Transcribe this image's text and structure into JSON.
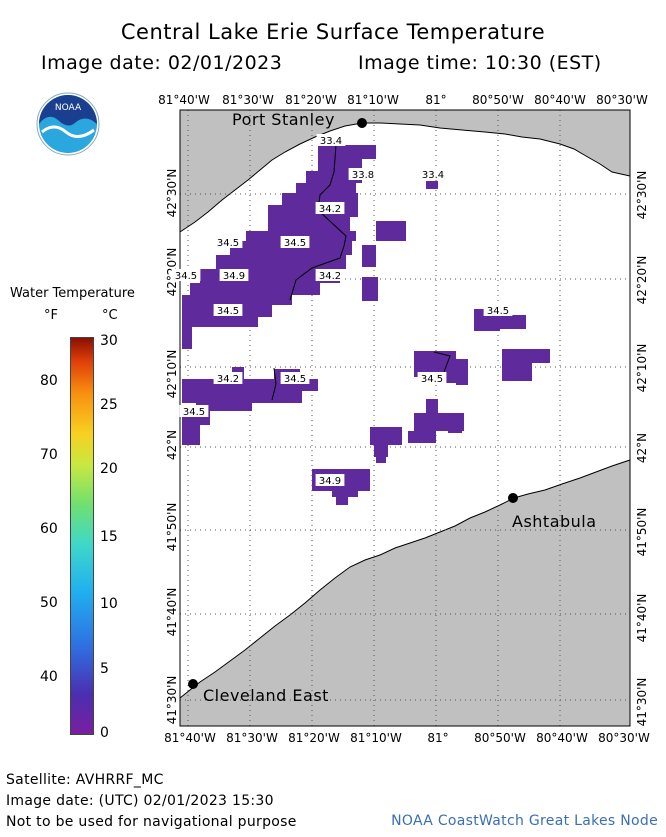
{
  "title": "Central Lake Erie Surface Temperature",
  "image_date": "Image date: 02/01/2023",
  "image_time": "Image time: 10:30 (EST)",
  "logo_text": "NOAA",
  "legend": {
    "title": "Water Temperature",
    "unit_f": "°F",
    "unit_c": "°C",
    "f_labels": [
      "80",
      "70",
      "60",
      "50",
      "40"
    ],
    "c_labels": [
      "30",
      "25",
      "20",
      "15",
      "10",
      "5",
      "0"
    ],
    "range_c": [
      0,
      30
    ]
  },
  "lon_labels": [
    "81°40'W",
    "81°30'W",
    "81°20'W",
    "81°10'W",
    "81°",
    "80°50'W",
    "80°40'W",
    "80°30'W"
  ],
  "lat_labels": [
    "42°30'N",
    "42°20'N",
    "42°10'N",
    "42°N",
    "41°50'N",
    "41°40'N",
    "41°30'N"
  ],
  "cities": [
    {
      "name": "Port Stanley"
    },
    {
      "name": "Ashtabula"
    },
    {
      "name": "Cleveland East"
    }
  ],
  "temp_labels": [
    "33.4",
    "33.8",
    "33.4",
    "34.2",
    "34.5",
    "34.5",
    "34.5",
    "34.9",
    "34.2",
    "34.5",
    "34.5",
    "34.2",
    "34.5",
    "34.5",
    "34.5",
    "34.9"
  ],
  "colors": {
    "land": "#c0c0c0",
    "water_temp": "#5e2a9c",
    "credit": "#3b6fb3"
  },
  "footer": {
    "satellite": "Satellite: AVHRRF_MC",
    "utc": "Image date: (UTC) 02/01/2023  15:30",
    "warning": "Not to be used for navigational purpose",
    "credit": "NOAA CoastWatch Great Lakes Node"
  }
}
